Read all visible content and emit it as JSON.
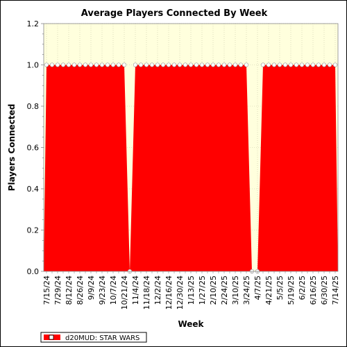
{
  "chart_data": {
    "type": "area",
    "title": "Average Players Connected By Week",
    "xlabel": "Week",
    "ylabel": "Players Connected",
    "ylim": [
      0,
      1.2
    ],
    "yticks": [
      "0.0",
      "0.2",
      "0.4",
      "0.6",
      "0.8",
      "1.0",
      "1.2"
    ],
    "xtick_labels": [
      "7/15/24",
      "7/29/24",
      "8/12/24",
      "8/26/24",
      "9/9/24",
      "9/23/24",
      "10/7/24",
      "10/21/24",
      "11/4/24",
      "11/18/24",
      "12/2/24",
      "12/16/24",
      "12/30/24",
      "1/13/25",
      "1/27/25",
      "2/10/25",
      "2/24/25",
      "3/10/25",
      "3/24/25",
      "4/7/25",
      "4/21/25",
      "5/5/25",
      "5/19/25",
      "6/2/25",
      "6/16/25",
      "6/30/25",
      "7/14/25"
    ],
    "grid": true,
    "legend_position": "bottom-left",
    "colors": {
      "series": "#ff0000",
      "plot_background": "#ffffdd",
      "marker_fill": "#ffffff"
    },
    "series": [
      {
        "name": "d20MUD: STAR WARS",
        "weeks": [
          "7/15/24",
          "7/22/24",
          "7/29/24",
          "8/5/24",
          "8/12/24",
          "8/19/24",
          "8/26/24",
          "9/2/24",
          "9/9/24",
          "9/16/24",
          "9/23/24",
          "9/30/24",
          "10/7/24",
          "10/14/24",
          "10/21/24",
          "10/28/24",
          "11/4/24",
          "11/11/24",
          "11/18/24",
          "11/25/24",
          "12/2/24",
          "12/9/24",
          "12/16/24",
          "12/23/24",
          "12/30/24",
          "1/6/25",
          "1/13/25",
          "1/20/25",
          "1/27/25",
          "2/3/25",
          "2/10/25",
          "2/17/25",
          "2/24/25",
          "3/3/25",
          "3/10/25",
          "3/17/25",
          "3/24/25",
          "3/31/25",
          "4/7/25",
          "4/14/25",
          "4/21/25",
          "4/28/25",
          "5/5/25",
          "5/12/25",
          "5/19/25",
          "5/26/25",
          "6/2/25",
          "6/9/25",
          "6/16/25",
          "6/23/25",
          "6/30/25",
          "7/7/25",
          "7/14/25"
        ],
        "values": [
          1,
          1,
          1,
          1,
          1,
          1,
          1,
          1,
          1,
          1,
          1,
          1,
          1,
          1,
          1,
          0,
          1,
          1,
          1,
          1,
          1,
          1,
          1,
          1,
          1,
          1,
          1,
          1,
          1,
          1,
          1,
          1,
          1,
          1,
          1,
          1,
          1,
          0,
          0,
          1,
          1,
          1,
          1,
          1,
          1,
          1,
          1,
          1,
          1,
          1,
          1,
          1,
          1
        ]
      }
    ]
  }
}
